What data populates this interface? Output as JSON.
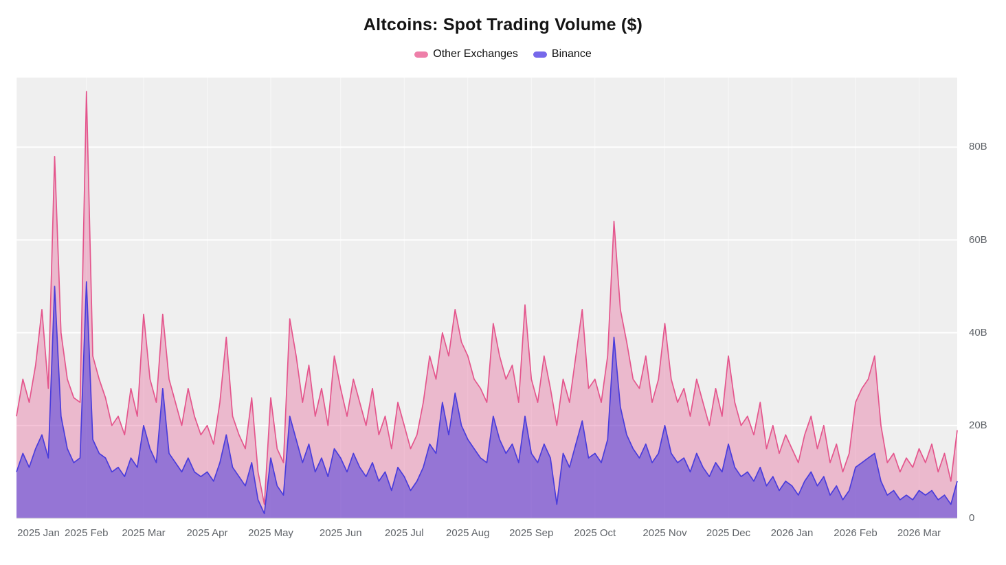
{
  "header": {
    "title": "Altcoins: Spot Trading Volume ($)"
  },
  "legend": [
    {
      "label": "Other Exchanges",
      "swatch_color": "#ee7fa9"
    },
    {
      "label": "Binance",
      "swatch_color": "#7668ea"
    }
  ],
  "colors": {
    "plot_background": "#efefef",
    "gridline": "#ffffff",
    "axis_text": "#5f6368",
    "other_exchanges_stroke": "#e4558c",
    "other_exchanges_fill": "rgba(230,86,142,0.35)",
    "binance_stroke": "#4a3cdb",
    "binance_fill": "rgba(97,76,218,0.62)",
    "baseline": "#d7d7d7"
  },
  "chart_data": {
    "type": "area",
    "stacked": true,
    "title": "Altcoins: Spot Trading Volume ($)",
    "unit": "USD billions per day",
    "grid": "horizontal",
    "legend_position": "top",
    "ylim": [
      0,
      95
    ],
    "y_ticks": [
      {
        "label": "80B",
        "value": 80
      },
      {
        "label": "60B",
        "value": 60
      },
      {
        "label": "40B",
        "value": 40
      },
      {
        "label": "20B",
        "value": 20
      },
      {
        "label": "0",
        "value": 0
      }
    ],
    "x_ticks": [
      {
        "label": "2025 Jan",
        "index": 0
      },
      {
        "label": "2025 Feb",
        "index": 11
      },
      {
        "label": "2025 Mar",
        "index": 20
      },
      {
        "label": "2025 Apr",
        "index": 30
      },
      {
        "label": "2025 May",
        "index": 40
      },
      {
        "label": "2025 Jun",
        "index": 51
      },
      {
        "label": "2025 Jul",
        "index": 61
      },
      {
        "label": "2025 Aug",
        "index": 71
      },
      {
        "label": "2025 Sep",
        "index": 81
      },
      {
        "label": "2025 Oct",
        "index": 91
      },
      {
        "label": "2025 Nov",
        "index": 102
      },
      {
        "label": "2025 Dec",
        "index": 112
      },
      {
        "label": "2026 Jan",
        "index": 122
      },
      {
        "label": "2026 Feb",
        "index": 132
      },
      {
        "label": "2026 Mar",
        "index": 142
      }
    ],
    "series": [
      {
        "name": "Binance",
        "values": [
          10,
          14,
          11,
          15,
          18,
          13,
          50,
          22,
          15,
          12,
          13,
          51,
          17,
          14,
          13,
          10,
          11,
          9,
          13,
          11,
          20,
          15,
          12,
          28,
          14,
          12,
          10,
          13,
          10,
          9,
          10,
          8,
          12,
          18,
          11,
          9,
          7,
          12,
          4,
          1,
          13,
          7,
          5,
          22,
          17,
          12,
          16,
          10,
          13,
          9,
          15,
          13,
          10,
          14,
          11,
          9,
          12,
          8,
          10,
          6,
          11,
          9,
          6,
          8,
          11,
          16,
          14,
          25,
          18,
          27,
          20,
          17,
          15,
          13,
          12,
          22,
          17,
          14,
          16,
          12,
          22,
          14,
          12,
          16,
          13,
          3,
          14,
          11,
          16,
          21,
          13,
          14,
          12,
          17,
          39,
          24,
          18,
          15,
          13,
          16,
          12,
          14,
          20,
          14,
          12,
          13,
          10,
          14,
          11,
          9,
          12,
          10,
          16,
          11,
          9,
          10,
          8,
          11,
          7,
          9,
          6,
          8,
          7,
          5,
          8,
          10,
          7,
          9,
          5,
          7,
          4,
          6,
          11,
          12,
          13,
          14,
          8,
          5,
          6,
          4,
          5,
          4,
          6,
          5,
          6,
          4,
          5,
          3,
          8
        ]
      },
      {
        "name": "Other Exchanges",
        "values": [
          12,
          16,
          14,
          18,
          27,
          15,
          28,
          18,
          15,
          14,
          12,
          41,
          18,
          16,
          13,
          10,
          11,
          9,
          15,
          11,
          24,
          15,
          13,
          16,
          16,
          13,
          10,
          15,
          12,
          9,
          10,
          8,
          13,
          21,
          11,
          9,
          8,
          14,
          6,
          2,
          13,
          8,
          7,
          21,
          18,
          13,
          17,
          12,
          15,
          11,
          20,
          15,
          12,
          16,
          14,
          11,
          16,
          10,
          12,
          9,
          14,
          11,
          9,
          10,
          14,
          19,
          16,
          15,
          17,
          18,
          18,
          18,
          15,
          15,
          13,
          20,
          18,
          16,
          17,
          13,
          24,
          16,
          13,
          19,
          15,
          17,
          16,
          14,
          19,
          24,
          15,
          16,
          13,
          18,
          25,
          21,
          20,
          15,
          15,
          19,
          13,
          16,
          22,
          16,
          13,
          15,
          12,
          16,
          14,
          11,
          16,
          12,
          19,
          14,
          11,
          12,
          10,
          14,
          8,
          11,
          8,
          10,
          8,
          7,
          10,
          12,
          8,
          11,
          7,
          9,
          6,
          8,
          14,
          16,
          17,
          21,
          12,
          7,
          8,
          6,
          8,
          7,
          9,
          7,
          10,
          6,
          9,
          5,
          11
        ]
      }
    ]
  }
}
